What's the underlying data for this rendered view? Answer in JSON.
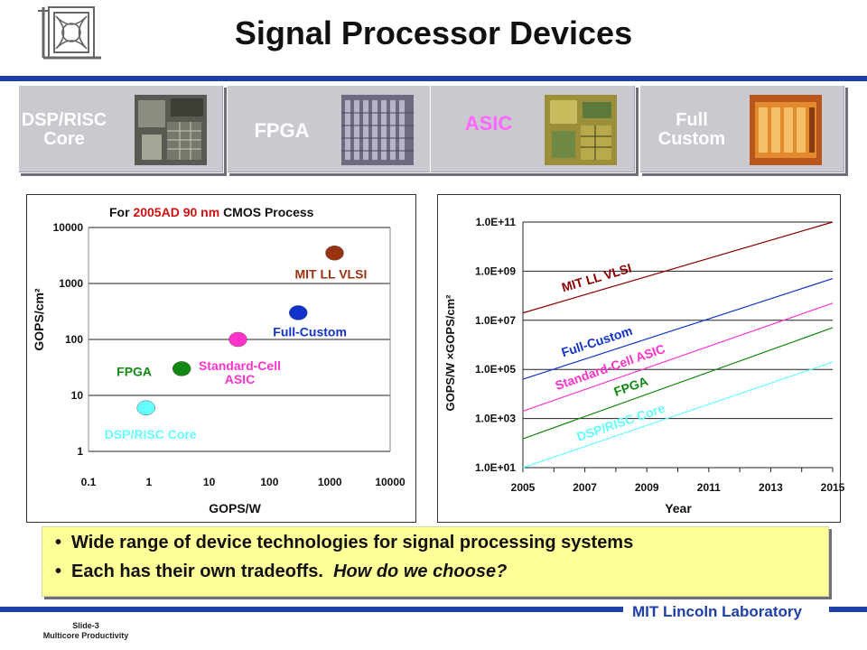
{
  "title": "Signal Processor Devices",
  "cards": [
    {
      "label_lines": [
        "DSP/RISC",
        "Core"
      ],
      "label_color": "#ffffff",
      "image": "dsp-die-photo"
    },
    {
      "label_lines": [
        "FPGA"
      ],
      "label_color": "#ffffff",
      "image": "fpga-die-photo"
    },
    {
      "label_lines": [
        "ASIC"
      ],
      "label_color": "#ff66ff",
      "image": "asic-die-photo"
    },
    {
      "label_lines": [
        "Full",
        "Custom"
      ],
      "label_color": "#ffffff",
      "image": "full-custom-die-photo"
    }
  ],
  "left_chart": {
    "title_pre": "For",
    "title_highlight": "2005AD 90 nm",
    "title_post": "CMOS Process",
    "title_highlight_color": "#cc1111",
    "xlabel": "GOPS/W",
    "ylabel": "GOPS/cm²",
    "x_ticks": [
      "0.1",
      "1",
      "10",
      "100",
      "1000",
      "10000"
    ],
    "y_ticks": [
      "1",
      "10",
      "100",
      "1000",
      "10000"
    ]
  },
  "right_chart": {
    "xlabel": "Year",
    "ylabel": "GOPS/W ×GOPS/cm²",
    "x_ticks": [
      "2005",
      "2007",
      "2009",
      "2011",
      "2013",
      "2015"
    ],
    "y_ticks": [
      "1.0E+01",
      "1.0E+03",
      "1.0E+05",
      "1.0E+07",
      "1.0E+09",
      "1.0E+11"
    ]
  },
  "chart_data": [
    {
      "type": "scatter",
      "title": "For 2005AD 90 nm CMOS Process",
      "xlabel": "GOPS/W",
      "ylabel": "GOPS/cm²",
      "x_scale": "log",
      "y_scale": "log",
      "xlim": [
        0.1,
        10000
      ],
      "ylim": [
        1,
        10000
      ],
      "grid": "horizontal",
      "series": [
        {
          "name": "DSP/RISC Core",
          "x": 0.9,
          "y": 6,
          "color": "#66ffff"
        },
        {
          "name": "FPGA",
          "x": 3.5,
          "y": 30,
          "color": "#118811"
        },
        {
          "name": "Standard-Cell ASIC",
          "x": 30,
          "y": 100,
          "color": "#ff33cc"
        },
        {
          "name": "Full-Custom",
          "x": 300,
          "y": 300,
          "color": "#1133cc"
        },
        {
          "name": "MIT LL VLSI",
          "x": 1200,
          "y": 3500,
          "color": "#993311"
        }
      ]
    },
    {
      "type": "line",
      "xlabel": "Year",
      "ylabel": "GOPS/W ×GOPS/cm²",
      "y_scale": "log",
      "xlim": [
        2005,
        2015
      ],
      "ylim": [
        10,
        100000000000
      ],
      "grid": "horizontal",
      "series": [
        {
          "name": "MIT LL VLSI",
          "x": [
            2005,
            2015
          ],
          "y": [
            20000000,
            100000000000
          ],
          "color": "#8b0000"
        },
        {
          "name": "Full-Custom",
          "x": [
            2005,
            2015
          ],
          "y": [
            40000,
            500000000
          ],
          "color": "#1133cc"
        },
        {
          "name": "Standard-Cell ASIC",
          "x": [
            2005,
            2015
          ],
          "y": [
            2000,
            50000000
          ],
          "color": "#ff33cc"
        },
        {
          "name": "FPGA",
          "x": [
            2005,
            2015
          ],
          "y": [
            150,
            5000000
          ],
          "color": "#118811"
        },
        {
          "name": "DSP/RISC Core",
          "x": [
            2005,
            2015
          ],
          "y": [
            10,
            200000
          ],
          "color": "#66ffff"
        }
      ]
    }
  ],
  "bullets": [
    {
      "text": "Wide range of device technologies for signal processing systems",
      "italic": ""
    },
    {
      "text": "Each has their own tradeoffs.  ",
      "italic": "How do we choose?"
    }
  ],
  "bullet_glyph": "•",
  "footer": {
    "lab": "MIT Lincoln Laboratory",
    "slide": "Slide-3",
    "subtitle": "Multicore Productivity"
  },
  "colors": {
    "accent": "#1e3fa8",
    "card_bg": "#c9c9cf",
    "bullet_bg": "#ffff99"
  }
}
